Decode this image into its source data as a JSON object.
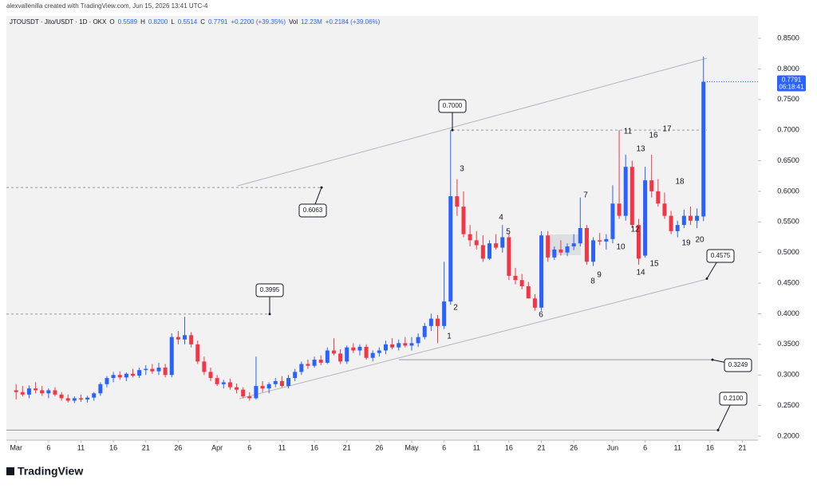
{
  "header": {
    "credit": "alexvallenilla created with TradingView.com, Jun 15, 2026 13:41 UTC-4",
    "symbol": "JTOUSDT · Jito/USDT · 1D · OKX",
    "ohlc": [
      {
        "label": "O",
        "value": "0.5589"
      },
      {
        "label": "H",
        "value": "0.8200"
      },
      {
        "label": "L",
        "value": "0.5514"
      },
      {
        "label": "C",
        "value": "0.7791"
      }
    ],
    "change": "+0.2200 (+39.35%)",
    "volume_label": "Vol",
    "volume": "12.23M",
    "volume_change": "+0.2184 (+39.06%)"
  },
  "footer": {
    "brand": "TradingView"
  },
  "chart_data": {
    "type": "candlestick",
    "up_color": "#2962ff",
    "down_color": "#f23645",
    "xlim": [
      -1.5,
      114.4
    ],
    "ylim": [
      0.1935,
      0.8865
    ],
    "xticks": [
      {
        "value": 0,
        "label": "Mar"
      },
      {
        "value": 5,
        "label": "6"
      },
      {
        "value": 10,
        "label": "11"
      },
      {
        "value": 15,
        "label": "16"
      },
      {
        "value": 20,
        "label": "21"
      },
      {
        "value": 25,
        "label": "26"
      },
      {
        "value": 31,
        "label": "Apr"
      },
      {
        "value": 36,
        "label": "6"
      },
      {
        "value": 41,
        "label": "11"
      },
      {
        "value": 46,
        "label": "16"
      },
      {
        "value": 51,
        "label": "21"
      },
      {
        "value": 56,
        "label": "26"
      },
      {
        "value": 61,
        "label": "May"
      },
      {
        "value": 66,
        "label": "6"
      },
      {
        "value": 71,
        "label": "11"
      },
      {
        "value": 76,
        "label": "16"
      },
      {
        "value": 81,
        "label": "21"
      },
      {
        "value": 86,
        "label": "26"
      },
      {
        "value": 92,
        "label": "Jun"
      },
      {
        "value": 97,
        "label": "6"
      },
      {
        "value": 102,
        "label": "11"
      },
      {
        "value": 107,
        "label": "16"
      },
      {
        "value": 112,
        "label": "21"
      }
    ],
    "yticks": [
      {
        "value": 0.2,
        "label": "0.2000"
      },
      {
        "value": 0.25,
        "label": "0.2500"
      },
      {
        "value": 0.3,
        "label": "0.3000"
      },
      {
        "value": 0.35,
        "label": "0.3500"
      },
      {
        "value": 0.4,
        "label": "0.4000"
      },
      {
        "value": 0.45,
        "label": "0.4500"
      },
      {
        "value": 0.5,
        "label": "0.5000"
      },
      {
        "value": 0.55,
        "label": "0.5500"
      },
      {
        "value": 0.6,
        "label": "0.6000"
      },
      {
        "value": 0.65,
        "label": "0.6500"
      },
      {
        "value": 0.7,
        "label": "0.7000"
      },
      {
        "value": 0.75,
        "label": "0.7500"
      },
      {
        "value": 0.8,
        "label": "0.8000"
      },
      {
        "value": 0.85,
        "label": "0.8500"
      }
    ],
    "open": [
      0.275,
      0.272,
      0.268,
      0.278,
      0.275,
      0.27,
      0.275,
      0.268,
      0.262,
      0.258,
      0.262,
      0.26,
      0.263,
      0.27,
      0.285,
      0.295,
      0.3,
      0.296,
      0.302,
      0.299,
      0.308,
      0.31,
      0.306,
      0.312,
      0.3,
      0.362,
      0.358,
      0.365,
      0.35,
      0.322,
      0.305,
      0.295,
      0.285,
      0.288,
      0.28,
      0.276,
      0.265,
      0.262,
      0.282,
      0.278,
      0.285,
      0.29,
      0.282,
      0.295,
      0.305,
      0.318,
      0.315,
      0.325,
      0.32,
      0.34,
      0.335,
      0.322,
      0.345,
      0.34,
      0.346,
      0.328,
      0.336,
      0.34,
      0.35,
      0.345,
      0.352,
      0.348,
      0.352,
      0.362,
      0.38,
      0.392,
      0.38,
      0.42,
      0.592,
      0.575,
      0.53,
      0.52,
      0.512,
      0.49,
      0.515,
      0.508,
      0.525,
      0.462,
      0.455,
      0.445,
      0.425,
      0.41,
      0.528,
      0.492,
      0.505,
      0.5,
      0.51,
      0.515,
      0.54,
      0.485,
      0.52,
      0.518,
      0.522,
      0.58,
      0.56,
      0.64,
      0.545,
      0.495,
      0.618,
      0.6,
      0.58,
      0.56,
      0.535,
      0.545,
      0.56,
      0.552,
      0.5589
    ],
    "high": [
      0.285,
      0.282,
      0.283,
      0.288,
      0.282,
      0.278,
      0.28,
      0.272,
      0.268,
      0.265,
      0.268,
      0.266,
      0.272,
      0.288,
      0.298,
      0.305,
      0.306,
      0.304,
      0.31,
      0.312,
      0.316,
      0.318,
      0.32,
      0.318,
      0.368,
      0.372,
      0.395,
      0.37,
      0.356,
      0.33,
      0.312,
      0.3,
      0.292,
      0.294,
      0.286,
      0.28,
      0.272,
      0.33,
      0.29,
      0.288,
      0.295,
      0.298,
      0.3,
      0.31,
      0.322,
      0.325,
      0.33,
      0.332,
      0.345,
      0.36,
      0.342,
      0.348,
      0.352,
      0.35,
      0.35,
      0.34,
      0.345,
      0.356,
      0.36,
      0.358,
      0.362,
      0.362,
      0.368,
      0.385,
      0.4,
      0.398,
      0.485,
      0.7,
      0.62,
      0.6,
      0.545,
      0.535,
      0.528,
      0.52,
      0.53,
      0.545,
      0.532,
      0.475,
      0.465,
      0.452,
      0.432,
      0.535,
      0.535,
      0.51,
      0.52,
      0.515,
      0.53,
      0.59,
      0.545,
      0.525,
      0.532,
      0.53,
      0.61,
      0.7,
      0.66,
      0.65,
      0.555,
      0.64,
      0.66,
      0.62,
      0.598,
      0.568,
      0.552,
      0.57,
      0.575,
      0.572,
      0.82
    ],
    "low": [
      0.26,
      0.265,
      0.262,
      0.27,
      0.266,
      0.262,
      0.265,
      0.258,
      0.255,
      0.254,
      0.256,
      0.255,
      0.258,
      0.266,
      0.28,
      0.288,
      0.292,
      0.29,
      0.296,
      0.295,
      0.3,
      0.302,
      0.3,
      0.296,
      0.296,
      0.35,
      0.35,
      0.345,
      0.318,
      0.3,
      0.29,
      0.282,
      0.278,
      0.276,
      0.27,
      0.262,
      0.258,
      0.26,
      0.272,
      0.27,
      0.28,
      0.28,
      0.278,
      0.29,
      0.3,
      0.31,
      0.312,
      0.316,
      0.318,
      0.332,
      0.318,
      0.318,
      0.336,
      0.332,
      0.325,
      0.322,
      0.33,
      0.334,
      0.342,
      0.34,
      0.345,
      0.34,
      0.346,
      0.358,
      0.372,
      0.352,
      0.375,
      0.415,
      0.56,
      0.525,
      0.51,
      0.505,
      0.485,
      0.488,
      0.505,
      0.5,
      0.455,
      0.448,
      0.44,
      0.428,
      0.405,
      0.405,
      0.485,
      0.488,
      0.495,
      0.494,
      0.504,
      0.51,
      0.48,
      0.478,
      0.512,
      0.505,
      0.515,
      0.555,
      0.552,
      0.54,
      0.48,
      0.492,
      0.59,
      0.575,
      0.555,
      0.53,
      0.525,
      0.54,
      0.545,
      0.54,
      0.5514
    ],
    "close": [
      0.272,
      0.268,
      0.278,
      0.275,
      0.27,
      0.275,
      0.268,
      0.262,
      0.258,
      0.262,
      0.26,
      0.263,
      0.27,
      0.285,
      0.295,
      0.3,
      0.296,
      0.302,
      0.299,
      0.308,
      0.31,
      0.306,
      0.312,
      0.3,
      0.362,
      0.358,
      0.365,
      0.35,
      0.322,
      0.305,
      0.295,
      0.285,
      0.288,
      0.28,
      0.276,
      0.265,
      0.262,
      0.282,
      0.278,
      0.285,
      0.29,
      0.282,
      0.295,
      0.305,
      0.318,
      0.315,
      0.325,
      0.32,
      0.34,
      0.335,
      0.322,
      0.345,
      0.34,
      0.346,
      0.328,
      0.336,
      0.34,
      0.35,
      0.345,
      0.352,
      0.348,
      0.352,
      0.362,
      0.38,
      0.392,
      0.38,
      0.42,
      0.592,
      0.575,
      0.53,
      0.52,
      0.512,
      0.49,
      0.515,
      0.508,
      0.525,
      0.462,
      0.455,
      0.445,
      0.425,
      0.41,
      0.528,
      0.492,
      0.505,
      0.5,
      0.51,
      0.515,
      0.54,
      0.485,
      0.52,
      0.518,
      0.522,
      0.58,
      0.56,
      0.64,
      0.545,
      0.49,
      0.618,
      0.6,
      0.58,
      0.56,
      0.535,
      0.545,
      0.56,
      0.552,
      0.56,
      0.7791
    ],
    "last_price": {
      "value": 0.7791,
      "label": "0.7791"
    },
    "countdown": "06:18:41",
    "price_labels": [
      {
        "value": 0.7,
        "label": "0.7000"
      },
      {
        "value": 0.6063,
        "label": "0.6063"
      },
      {
        "value": 0.3995,
        "label": "0.3995"
      },
      {
        "value": 0.4575,
        "label": "0.4575"
      },
      {
        "value": 0.3249,
        "label": "0.3249"
      },
      {
        "value": 0.21,
        "label": "0.2100"
      }
    ],
    "wave_labels": [
      "1",
      "2",
      "3",
      "4",
      "5",
      "6",
      "7",
      "8",
      "9",
      "10",
      "11",
      "12",
      "13",
      "14",
      "15",
      "16",
      "17",
      "18",
      "19",
      "20"
    ]
  }
}
